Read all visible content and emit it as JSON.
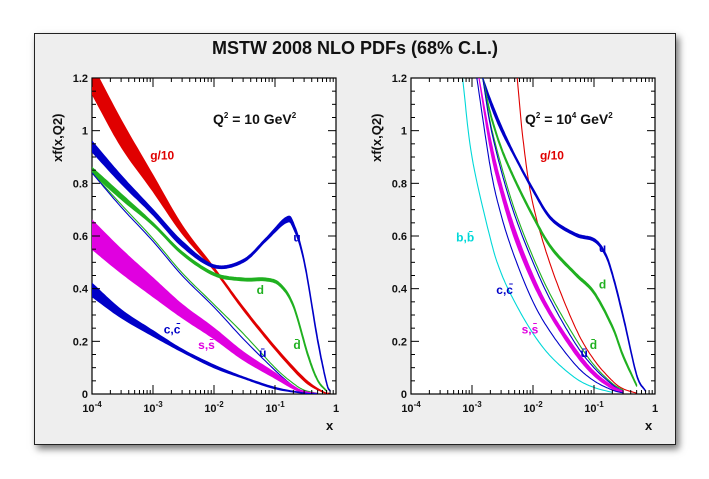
{
  "chart_data": {
    "title": "MSTW 2008 NLO PDFs (68% C.L.)",
    "panels": [
      {
        "type": "line",
        "q2_label": "Q2 = 10 GeV2",
        "q2_base": "Q",
        "q2_exp1": "2",
        "q2_mid": " = 10 GeV",
        "q2_exp2": "2",
        "xlabel": "x",
        "ylabel": "xf(x,Q2)",
        "xscale": "log",
        "xlim": [
          0.0001,
          1
        ],
        "ylim": [
          0,
          1.2
        ],
        "xticks": [
          {
            "base": "10",
            "exp": "-4",
            "value": 0.0001
          },
          {
            "base": "10",
            "exp": "-3",
            "value": 0.001
          },
          {
            "base": "10",
            "exp": "-2",
            "value": 0.01
          },
          {
            "base": "10",
            "exp": "-1",
            "value": 0.1
          },
          {
            "base": "1",
            "exp": "",
            "value": 1
          }
        ],
        "yticks": [
          "0",
          "0.2",
          "0.4",
          "0.6",
          "0.8",
          "1",
          "1.2"
        ],
        "series": [
          {
            "name": "g/10",
            "color": "#e00000",
            "band": true,
            "x": [
              0.0001,
              0.0003,
              0.001,
              0.003,
              0.01,
              0.03,
              0.1,
              0.3,
              0.6,
              0.8
            ],
            "lo": [
              1.14,
              0.94,
              0.77,
              0.61,
              0.47,
              0.32,
              0.17,
              0.05,
              0.008,
              0.001
            ],
            "hi": [
              1.25,
              1.04,
              0.83,
              0.64,
              0.48,
              0.33,
              0.18,
              0.06,
              0.01,
              0.002
            ]
          },
          {
            "name": "u",
            "color": "#0000c8",
            "band": true,
            "x": [
              0.0001,
              0.0003,
              0.001,
              0.003,
              0.01,
              0.03,
              0.07,
              0.15,
              0.2,
              0.3,
              0.5,
              0.7,
              0.8
            ],
            "lo": [
              0.92,
              0.8,
              0.68,
              0.56,
              0.48,
              0.5,
              0.58,
              0.65,
              0.63,
              0.5,
              0.2,
              0.04,
              0.01
            ],
            "hi": [
              0.96,
              0.83,
              0.7,
              0.58,
              0.49,
              0.51,
              0.59,
              0.67,
              0.65,
              0.51,
              0.21,
              0.045,
              0.012
            ]
          },
          {
            "name": "d",
            "color": "#20b020",
            "band": true,
            "x": [
              0.0001,
              0.0003,
              0.001,
              0.003,
              0.01,
              0.03,
              0.07,
              0.12,
              0.2,
              0.35,
              0.5,
              0.7
            ],
            "lo": [
              0.84,
              0.74,
              0.64,
              0.53,
              0.45,
              0.43,
              0.43,
              0.41,
              0.33,
              0.14,
              0.05,
              0.01
            ],
            "hi": [
              0.86,
              0.76,
              0.65,
              0.54,
              0.46,
              0.44,
              0.44,
              0.42,
              0.34,
              0.15,
              0.055,
              0.012
            ]
          },
          {
            "name": "d̄",
            "color": "#20b020",
            "band": false,
            "x": [
              0.0001,
              0.0003,
              0.001,
              0.003,
              0.01,
              0.03,
              0.1,
              0.2,
              0.3,
              0.5
            ],
            "y": [
              0.84,
              0.72,
              0.59,
              0.46,
              0.34,
              0.23,
              0.1,
              0.04,
              0.015,
              0.002
            ]
          },
          {
            "name": "ū",
            "color": "#0000c8",
            "band": false,
            "x": [
              0.0001,
              0.0003,
              0.001,
              0.003,
              0.01,
              0.03,
              0.1,
              0.2,
              0.3,
              0.5
            ],
            "y": [
              0.84,
              0.71,
              0.58,
              0.45,
              0.33,
              0.21,
              0.09,
              0.03,
              0.01,
              0.001
            ]
          },
          {
            "name": "s,s̄",
            "color": "#e000e0",
            "band": true,
            "x": [
              0.0001,
              0.0003,
              0.001,
              0.003,
              0.01,
              0.03,
              0.1,
              0.2,
              0.3,
              0.5
            ],
            "lo": [
              0.55,
              0.46,
              0.37,
              0.29,
              0.21,
              0.13,
              0.06,
              0.02,
              0.005,
              0.001
            ],
            "hi": [
              0.66,
              0.55,
              0.44,
              0.34,
              0.25,
              0.16,
              0.08,
              0.03,
              0.01,
              0.002
            ]
          },
          {
            "name": "c,c̄",
            "color": "#0000c8",
            "band": true,
            "x": [
              0.0001,
              0.0003,
              0.001,
              0.003,
              0.01,
              0.03,
              0.1,
              0.3,
              0.5
            ],
            "lo": [
              0.37,
              0.29,
              0.22,
              0.16,
              0.1,
              0.06,
              0.02,
              0.003,
              0.001
            ],
            "hi": [
              0.42,
              0.32,
              0.24,
              0.17,
              0.11,
              0.065,
              0.025,
              0.004,
              0.001
            ]
          }
        ],
        "labels": [
          {
            "text": "g/10",
            "color": "#e00000",
            "x": 0.0009,
            "y": 0.89
          },
          {
            "text": "u",
            "color": "#0000c8",
            "x": 0.2,
            "y": 0.58
          },
          {
            "text": "d",
            "color": "#20b020",
            "x": 0.05,
            "y": 0.38
          },
          {
            "text": "d̄",
            "color": "#20b020",
            "x": 0.2,
            "y": 0.17
          },
          {
            "text": "ū",
            "color": "#0000c8",
            "x": 0.055,
            "y": 0.14
          },
          {
            "text": "s,s̄",
            "color": "#e000e0",
            "x": 0.0055,
            "y": 0.17
          },
          {
            "text": "c,c̄",
            "color": "#0000c8",
            "x": 0.0015,
            "y": 0.23
          }
        ]
      },
      {
        "type": "line",
        "q2_label": "Q2 = 104 GeV2",
        "q2_base": "Q",
        "q2_exp1": "2",
        "q2_mid": " = 10",
        "q2_exp_mid": "4",
        "q2_tail": " GeV",
        "q2_exp2": "2",
        "xlabel": "x",
        "ylabel": "xf(x,Q2)",
        "xscale": "log",
        "xlim": [
          0.0001,
          1
        ],
        "ylim": [
          0,
          1.2
        ],
        "xticks": [
          {
            "base": "10",
            "exp": "-4",
            "value": 0.0001
          },
          {
            "base": "10",
            "exp": "-3",
            "value": 0.001
          },
          {
            "base": "10",
            "exp": "-2",
            "value": 0.01
          },
          {
            "base": "10",
            "exp": "-1",
            "value": 0.1
          },
          {
            "base": "1",
            "exp": "",
            "value": 1
          }
        ],
        "yticks": [
          "0",
          "0.2",
          "0.4",
          "0.6",
          "0.8",
          "1",
          "1.2"
        ],
        "series": [
          {
            "name": "g/10",
            "color": "#e00000",
            "band": false,
            "x": [
              0.0055,
              0.007,
              0.01,
              0.02,
              0.05,
              0.1,
              0.2,
              0.3,
              0.5
            ],
            "y": [
              1.2,
              0.95,
              0.72,
              0.48,
              0.25,
              0.13,
              0.05,
              0.02,
              0.003
            ]
          },
          {
            "name": "u",
            "color": "#0000c8",
            "band": true,
            "x": [
              0.0015,
              0.002,
              0.003,
              0.005,
              0.01,
              0.02,
              0.05,
              0.1,
              0.15,
              0.2,
              0.3,
              0.5,
              0.7
            ],
            "lo": [
              1.2,
              1.1,
              1.0,
              0.9,
              0.77,
              0.66,
              0.6,
              0.58,
              0.53,
              0.45,
              0.29,
              0.07,
              0.01
            ],
            "hi": [
              1.2,
              1.12,
              1.02,
              0.91,
              0.78,
              0.67,
              0.61,
              0.59,
              0.54,
              0.46,
              0.3,
              0.075,
              0.012
            ]
          },
          {
            "name": "d",
            "color": "#20b020",
            "band": true,
            "x": [
              0.0015,
              0.002,
              0.003,
              0.005,
              0.01,
              0.02,
              0.05,
              0.1,
              0.2,
              0.3,
              0.5
            ],
            "lo": [
              1.2,
              1.06,
              0.93,
              0.81,
              0.67,
              0.55,
              0.45,
              0.38,
              0.25,
              0.14,
              0.03
            ],
            "hi": [
              1.2,
              1.07,
              0.94,
              0.82,
              0.68,
              0.56,
              0.46,
              0.39,
              0.26,
              0.15,
              0.035
            ]
          },
          {
            "name": "d̄",
            "color": "#20b020",
            "band": false,
            "x": [
              0.0015,
              0.002,
              0.003,
              0.005,
              0.01,
              0.02,
              0.05,
              0.1,
              0.2,
              0.3
            ],
            "y": [
              1.2,
              1.03,
              0.87,
              0.7,
              0.52,
              0.37,
              0.21,
              0.11,
              0.04,
              0.015
            ]
          },
          {
            "name": "ū",
            "color": "#0000c8",
            "band": false,
            "x": [
              0.0015,
              0.002,
              0.003,
              0.005,
              0.01,
              0.02,
              0.05,
              0.1,
              0.2,
              0.3
            ],
            "y": [
              1.2,
              1.02,
              0.85,
              0.68,
              0.5,
              0.35,
              0.19,
              0.1,
              0.035,
              0.01
            ]
          },
          {
            "name": "s,s̄",
            "color": "#e000e0",
            "band": true,
            "x": [
              0.0013,
              0.002,
              0.003,
              0.005,
              0.01,
              0.02,
              0.05,
              0.1,
              0.2,
              0.3
            ],
            "lo": [
              1.2,
              0.93,
              0.76,
              0.59,
              0.42,
              0.29,
              0.15,
              0.07,
              0.02,
              0.005
            ],
            "hi": [
              1.2,
              0.97,
              0.8,
              0.63,
              0.45,
              0.31,
              0.17,
              0.085,
              0.03,
              0.01
            ]
          },
          {
            "name": "c,c̄",
            "color": "#0000c8",
            "band": false,
            "x": [
              0.0012,
              0.002,
              0.003,
              0.005,
              0.01,
              0.02,
              0.05,
              0.1,
              0.2,
              0.3
            ],
            "y": [
              1.2,
              0.86,
              0.68,
              0.52,
              0.35,
              0.23,
              0.11,
              0.05,
              0.015,
              0.004
            ]
          },
          {
            "name": "b,b̄",
            "color": "#00d8d8",
            "band": false,
            "x": [
              0.0007,
              0.001,
              0.002,
              0.003,
              0.005,
              0.01,
              0.02,
              0.05,
              0.1,
              0.2
            ],
            "y": [
              1.2,
              0.9,
              0.59,
              0.46,
              0.35,
              0.23,
              0.14,
              0.06,
              0.025,
              0.006
            ]
          }
        ],
        "labels": [
          {
            "text": "g/10",
            "color": "#e00000",
            "x": 0.013,
            "y": 0.89
          },
          {
            "text": "u",
            "color": "#0000c8",
            "x": 0.12,
            "y": 0.54
          },
          {
            "text": "d",
            "color": "#20b020",
            "x": 0.12,
            "y": 0.4
          },
          {
            "text": "d̄",
            "color": "#20b020",
            "x": 0.085,
            "y": 0.17
          },
          {
            "text": "ū",
            "color": "#0000c8",
            "x": 0.06,
            "y": 0.14
          },
          {
            "text": "s,s̄",
            "color": "#e000e0",
            "x": 0.0065,
            "y": 0.23
          },
          {
            "text": "c,c̄",
            "color": "#0000c8",
            "x": 0.0025,
            "y": 0.38
          },
          {
            "text": "b,b̄",
            "color": "#00d8d8",
            "x": 0.00055,
            "y": 0.58
          }
        ]
      }
    ]
  }
}
